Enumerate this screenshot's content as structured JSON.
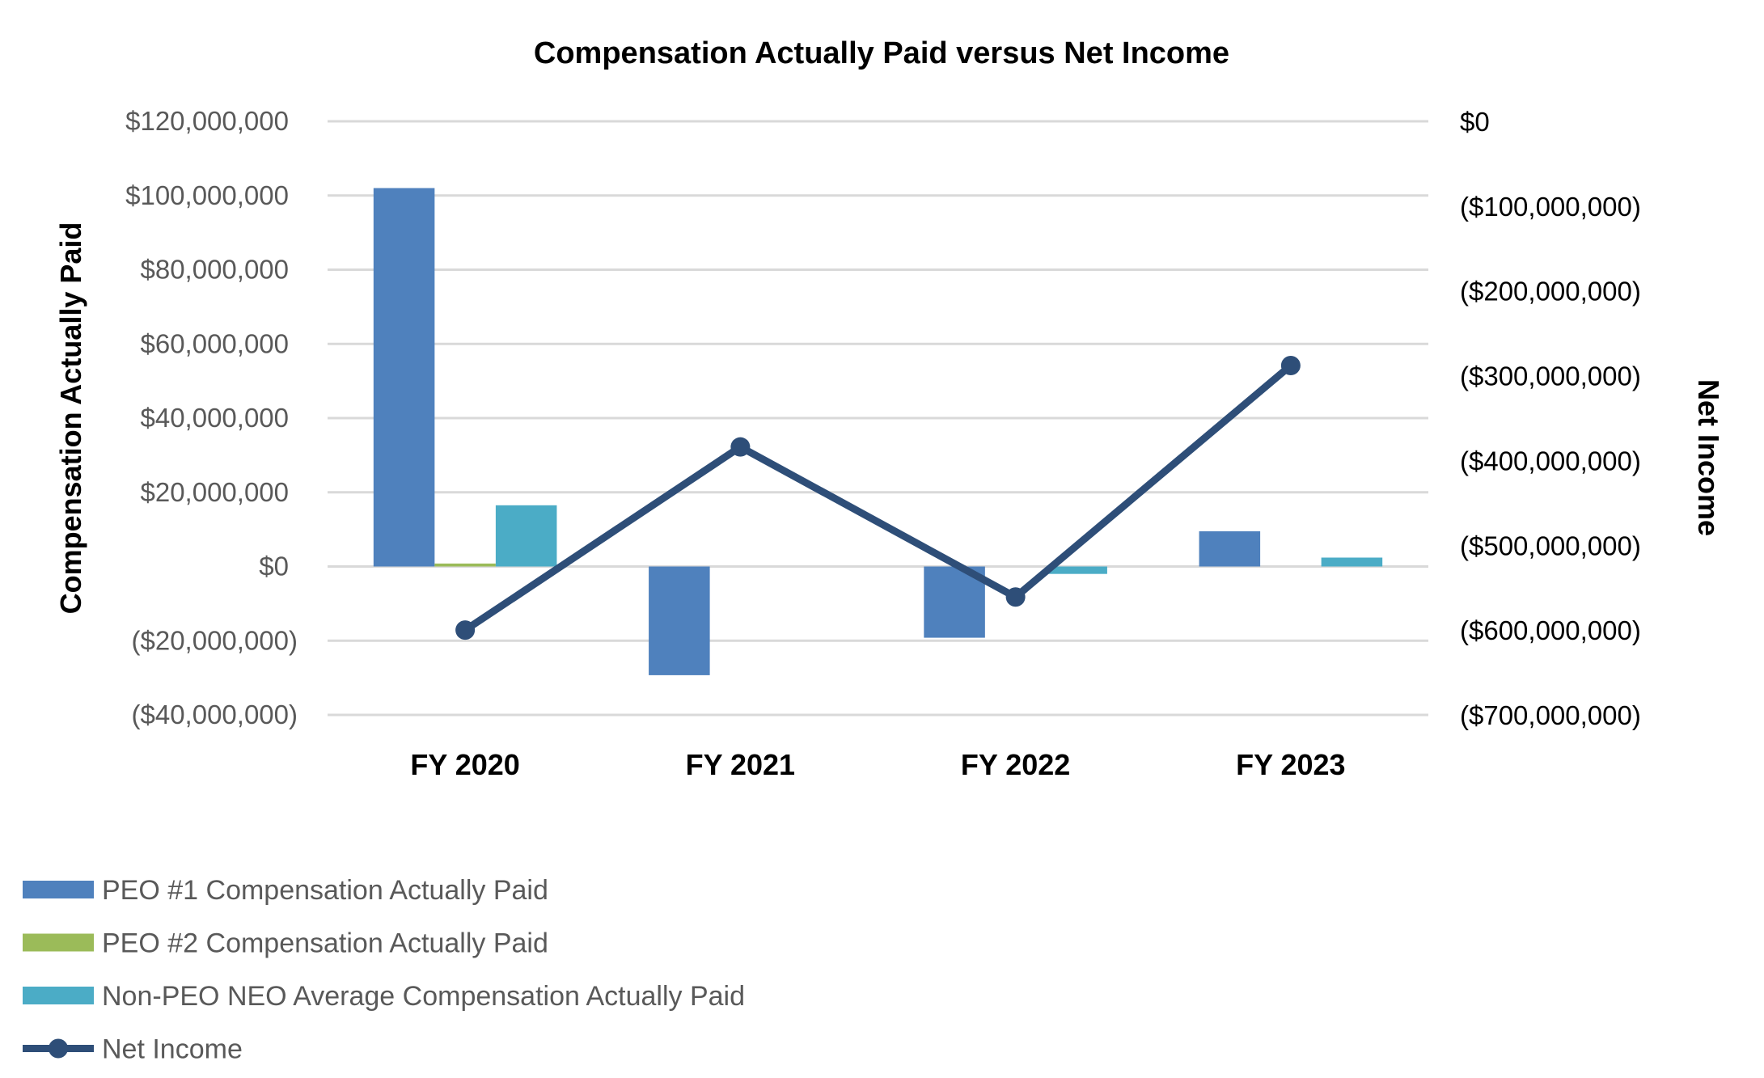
{
  "chart_data": {
    "type": "bar",
    "title": "Compensation Actually Paid versus Net Income",
    "categories": [
      "FY 2020",
      "FY 2021",
      "FY 2022",
      "FY 2023"
    ],
    "ylabel": "Compensation Actually Paid",
    "ylabel_right": "Net Income",
    "ylim": [
      -40000000,
      120000000
    ],
    "ylim_right": [
      -700000000,
      0
    ],
    "yticks": [
      "$120,000,000",
      "$100,000,000",
      "$80,000,000",
      "$60,000,000",
      "$40,000,000",
      "$20,000,000",
      "$0",
      "($20,000,000)",
      "($40,000,000)"
    ],
    "yticks_right": [
      "$0",
      "($100,000,000)",
      "($200,000,000)",
      "($300,000,000)",
      "($400,000,000)",
      "($500,000,000)",
      "($600,000,000)",
      "($700,000,000)"
    ],
    "grid": true,
    "legend_placement": "bottom-left",
    "series": [
      {
        "name": "PEO #1 Compensation Actually Paid",
        "type": "bar",
        "axis": "left",
        "color": "#4F81BD",
        "values": [
          102000000,
          -29300000,
          -19200000,
          9500000
        ]
      },
      {
        "name": "PEO #2 Compensation Actually Paid",
        "type": "bar",
        "axis": "left",
        "color": "#9BBB59",
        "values": [
          800000,
          0,
          0,
          0
        ]
      },
      {
        "name": "Non-PEO NEO Average Compensation Actually Paid",
        "type": "bar",
        "axis": "left",
        "color": "#4BACC6",
        "values": [
          16500000,
          0,
          -2000000,
          2400000
        ]
      },
      {
        "name": "Net Income",
        "type": "line",
        "axis": "right",
        "color": "#2E4E78",
        "values": [
          -600000000,
          -384000000,
          -561000000,
          -288000000
        ]
      }
    ]
  }
}
